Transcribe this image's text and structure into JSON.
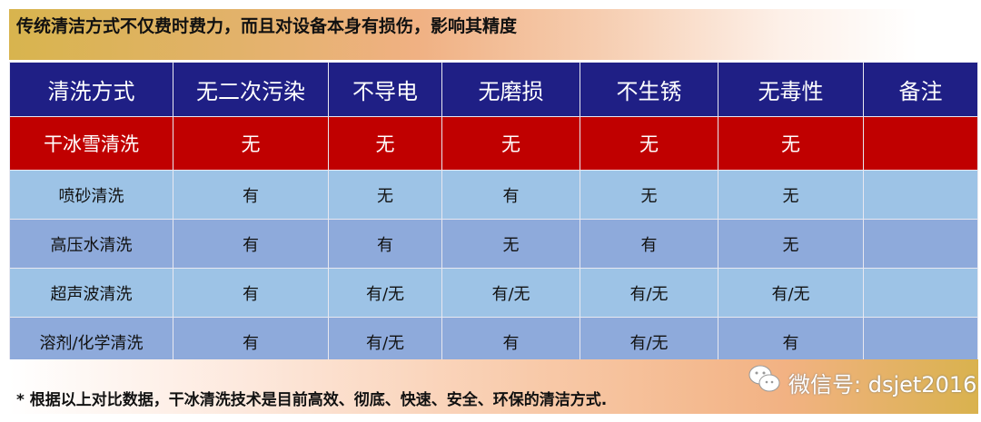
{
  "banner_title": "传统清洁方式不仅费时费力，而且对设备本身有损伤，影响其精度",
  "table": {
    "headers": [
      "清洗方式",
      "无二次污染",
      "不导电",
      "无磨损",
      "不生锈",
      "无毒性",
      "备注"
    ],
    "rows": [
      [
        "干冰雪清洗",
        "无",
        "无",
        "无",
        "无",
        "无",
        ""
      ],
      [
        "喷砂清洗",
        "有",
        "无",
        "有",
        "无",
        "无",
        ""
      ],
      [
        "高压水清洗",
        "有",
        "有",
        "无",
        "有",
        "无",
        ""
      ],
      [
        "超声波清洗",
        "有",
        "有/无",
        "有/无",
        "有/无",
        "有/无",
        ""
      ],
      [
        "溶剂/化学清洗",
        "有",
        "有/无",
        "有",
        "有/无",
        "有",
        ""
      ]
    ]
  },
  "footer_note": "*  根据以上对比数据，干冰清洗技术是目前高效、彻底、快速、安全、环保的清洁方式.",
  "watermark": {
    "icon": "wechat-icon",
    "text": "微信号: dsjet2016"
  },
  "colors": {
    "header": "#1f1f85",
    "highlight": "#c00000",
    "row_a": "#9dc3e6",
    "row_b": "#8eaadb"
  }
}
